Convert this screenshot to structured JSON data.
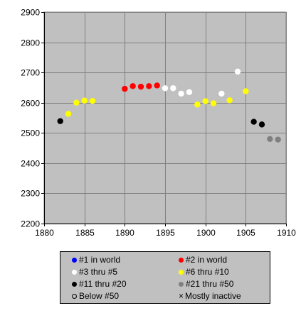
{
  "chart_data": {
    "type": "scatter",
    "xlim": [
      1880,
      1910
    ],
    "ylim": [
      2200,
      2900
    ],
    "xticks": [
      1880,
      1885,
      1890,
      1895,
      1900,
      1905,
      1910
    ],
    "yticks": [
      2200,
      2300,
      2400,
      2500,
      2600,
      2700,
      2800,
      2900
    ],
    "grid": true,
    "plot_background": "#c0c0c0",
    "legend_position": "bottom",
    "series": [
      {
        "name": "#1 in world",
        "color": "#0000ff",
        "marker": "dot",
        "points": []
      },
      {
        "name": "#2 in world",
        "color": "#ff0000",
        "marker": "dot",
        "points": [
          [
            1890,
            2646
          ],
          [
            1891,
            2655
          ],
          [
            1892,
            2653
          ],
          [
            1893,
            2655
          ],
          [
            1894,
            2657
          ]
        ]
      },
      {
        "name": "#3 thru #5",
        "color": "#ffffff",
        "marker": "dot",
        "points": [
          [
            1895,
            2648
          ],
          [
            1896,
            2648
          ],
          [
            1897,
            2630
          ],
          [
            1898,
            2635
          ],
          [
            1902,
            2630
          ],
          [
            1904,
            2703
          ]
        ]
      },
      {
        "name": "#6 thru #10",
        "color": "#ffff00",
        "marker": "dot",
        "points": [
          [
            1883,
            2563
          ],
          [
            1884,
            2600
          ],
          [
            1885,
            2607
          ],
          [
            1886,
            2606
          ],
          [
            1899,
            2594
          ],
          [
            1900,
            2605
          ],
          [
            1901,
            2598
          ],
          [
            1903,
            2608
          ],
          [
            1905,
            2638
          ]
        ]
      },
      {
        "name": "#11 thru #20",
        "color": "#000000",
        "marker": "dot",
        "points": [
          [
            1882,
            2539
          ],
          [
            1906,
            2537
          ],
          [
            1907,
            2528
          ]
        ]
      },
      {
        "name": "#21 thru #50",
        "color": "#808080",
        "marker": "dot",
        "points": [
          [
            1908,
            2480
          ],
          [
            1909,
            2478
          ]
        ]
      },
      {
        "name": "Below #50",
        "color": "#000000",
        "marker": "open-circle",
        "points": []
      },
      {
        "name": "Mostly inactive",
        "color": "#000000",
        "marker": "cross",
        "points": []
      }
    ]
  }
}
